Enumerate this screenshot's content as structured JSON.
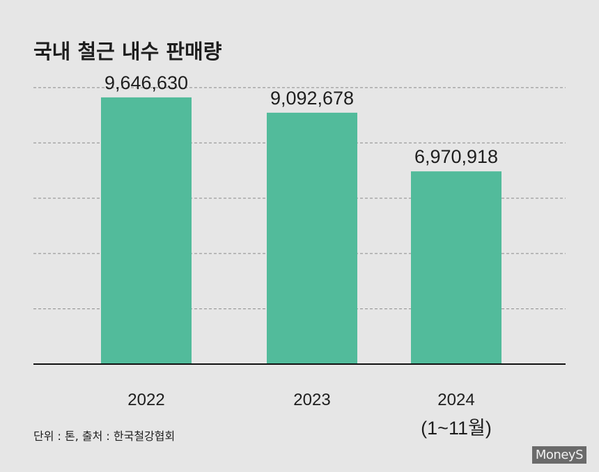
{
  "chart_data": {
    "type": "bar",
    "title": "국내 철근 내수 판매량",
    "categories": [
      "2022",
      "2023",
      "2024"
    ],
    "category_sublabels": [
      "",
      "",
      "(1~11월)"
    ],
    "values": [
      9646630,
      9092678,
      6970918
    ],
    "value_labels": [
      "9,646,630",
      "9,092,678",
      "6,970,918"
    ],
    "xlabel": "",
    "ylabel": "",
    "ylim": [
      0,
      10500000
    ],
    "grid": true,
    "bar_color": "#52bb9b",
    "source": "단위 : 톤, 출처 : 한국철강협회"
  },
  "watermark": "MoneyS"
}
